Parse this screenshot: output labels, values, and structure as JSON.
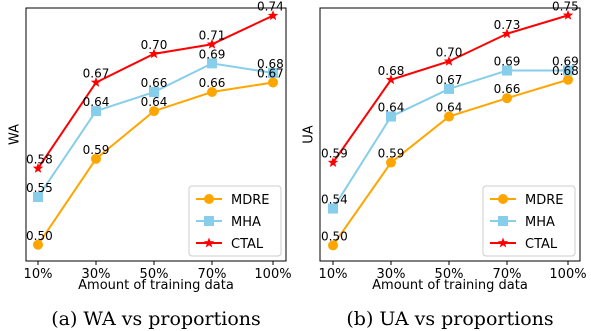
{
  "chart_data": [
    {
      "type": "line",
      "categories": [
        "10%",
        "30%",
        "50%",
        "70%",
        "100%"
      ],
      "series": [
        {
          "name": "MDRE",
          "values": [
            0.5,
            0.59,
            0.64,
            0.66,
            0.67
          ],
          "color": "#ffa500",
          "marker": "circle"
        },
        {
          "name": "MHA",
          "values": [
            0.55,
            0.64,
            0.66,
            0.69,
            0.68
          ],
          "color": "#87ceeb",
          "marker": "square"
        },
        {
          "name": "CTAL",
          "values": [
            0.58,
            0.67,
            0.7,
            0.71,
            0.74
          ],
          "color": "#ff0000",
          "marker": "star"
        }
      ],
      "xlabel": "Amount of training data",
      "ylabel": "WA",
      "ylim": [
        0.483,
        0.748
      ],
      "grid": false,
      "legend": "bottom-right",
      "caption": "(a) WA vs proportions"
    },
    {
      "type": "line",
      "categories": [
        "10%",
        "30%",
        "50%",
        "70%",
        "100%"
      ],
      "series": [
        {
          "name": "MDRE",
          "values": [
            0.5,
            0.59,
            0.64,
            0.66,
            0.68
          ],
          "color": "#ffa500",
          "marker": "circle"
        },
        {
          "name": "MHA",
          "values": [
            0.54,
            0.64,
            0.67,
            0.69,
            0.69
          ],
          "color": "#87ceeb",
          "marker": "square"
        },
        {
          "name": "CTAL",
          "values": [
            0.59,
            0.68,
            0.7,
            0.73,
            0.75
          ],
          "color": "#ff0000",
          "marker": "star"
        }
      ],
      "xlabel": "Amount of training data",
      "ylabel": "UA",
      "ylim": [
        0.483,
        0.758
      ],
      "grid": false,
      "legend": "bottom-right",
      "caption": "(b) UA vs proportions"
    }
  ]
}
